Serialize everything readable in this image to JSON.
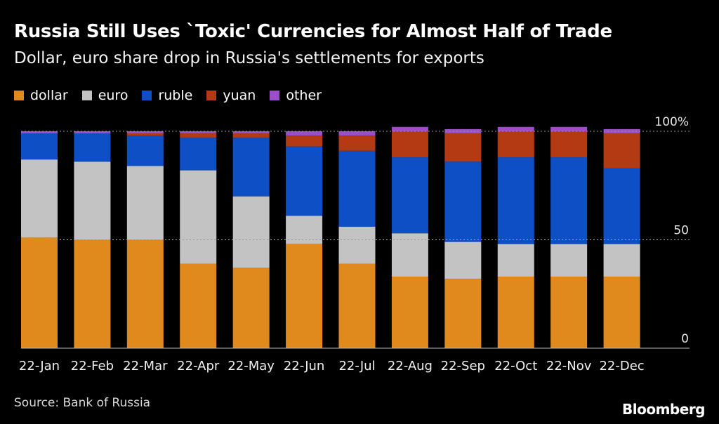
{
  "header": {
    "title": "Russia Still Uses `Toxic' Currencies for Almost Half of Trade",
    "subtitle": "Dollar, euro share drop in Russia's settlements for exports"
  },
  "legend": [
    {
      "label": "dollar",
      "color": "#e08a1e"
    },
    {
      "label": "euro",
      "color": "#c3c3c3"
    },
    {
      "label": "ruble",
      "color": "#0f4fc6"
    },
    {
      "label": "yuan",
      "color": "#b43a14"
    },
    {
      "label": "other",
      "color": "#9a4ec8"
    }
  ],
  "chart_data": {
    "type": "bar",
    "stacked": true,
    "title": "Russia Still Uses `Toxic' Currencies for Almost Half of Trade",
    "subtitle": "Dollar, euro share drop in Russia's settlements for exports",
    "categories": [
      "22-Jan",
      "22-Feb",
      "22-Mar",
      "22-Apr",
      "22-May",
      "22-Jun",
      "22-Jul",
      "22-Aug",
      "22-Sep",
      "22-Oct",
      "22-Nov",
      "22-Dec"
    ],
    "series": [
      {
        "name": "dollar",
        "color": "#e08a1e",
        "values": [
          51,
          50,
          50,
          39,
          37,
          48,
          39,
          33,
          32,
          33,
          33,
          33
        ]
      },
      {
        "name": "euro",
        "color": "#c3c3c3",
        "values": [
          36,
          36,
          34,
          43,
          33,
          13,
          17,
          20,
          17,
          15,
          15,
          15
        ]
      },
      {
        "name": "ruble",
        "color": "#0f4fc6",
        "values": [
          12,
          13,
          14,
          15,
          27,
          32,
          35,
          35,
          37,
          40,
          40,
          35
        ]
      },
      {
        "name": "yuan",
        "color": "#b43a14",
        "values": [
          0,
          0,
          1,
          2,
          2,
          5,
          7,
          12,
          13,
          12,
          12,
          16
        ]
      },
      {
        "name": "other",
        "color": "#9a4ec8",
        "values": [
          1,
          1,
          1,
          1,
          1,
          2,
          2,
          2,
          2,
          2,
          2,
          2
        ]
      }
    ],
    "yticks": [
      {
        "value": 0,
        "label": "0"
      },
      {
        "value": 50,
        "label": "50"
      },
      {
        "value": 100,
        "label": "100%"
      }
    ],
    "ylim": [
      0,
      100
    ],
    "xlabel": "",
    "ylabel": ""
  },
  "footer": {
    "source": "Source: Bank of Russia",
    "brand": "Bloomberg"
  }
}
